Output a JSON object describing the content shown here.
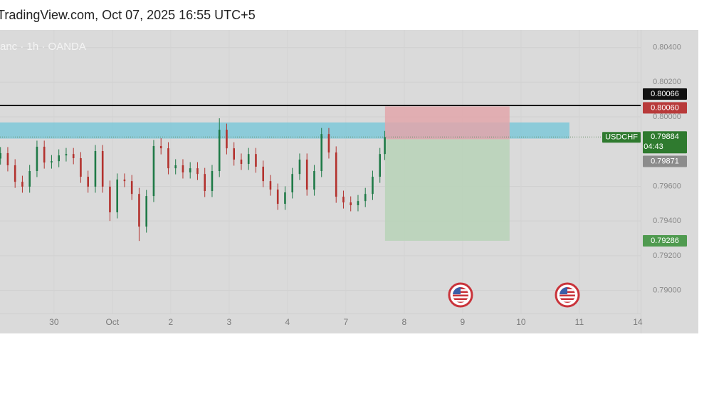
{
  "chart_data": {
    "type": "candlestick",
    "header": "TradingView.com, Oct 07, 2025 16:55 UTC+5",
    "title": "anc · 1h · OANDA",
    "xlim": [
      -22.2,
      241.2
    ],
    "ylim": [
      0.78867,
      0.80501
    ],
    "yticks": [
      {
        "value": 0.804,
        "label": "0.80400"
      },
      {
        "value": 0.802,
        "label": "0.80200"
      },
      {
        "value": 0.8,
        "label": "0.80000"
      },
      {
        "value": 0.796,
        "label": "0.79600"
      },
      {
        "value": 0.794,
        "label": "0.79400"
      },
      {
        "value": 0.792,
        "label": "0.79200"
      },
      {
        "value": 0.79,
        "label": "0.79000"
      }
    ],
    "xticks": [
      {
        "value": 0,
        "label": "30"
      },
      {
        "value": 24,
        "label": "Oct"
      },
      {
        "value": 48,
        "label": "2"
      },
      {
        "value": 72,
        "label": "3"
      },
      {
        "value": 96,
        "label": "4"
      },
      {
        "value": 120,
        "label": "7"
      },
      {
        "value": 144,
        "label": "8"
      },
      {
        "value": 168,
        "label": "9"
      },
      {
        "value": 192,
        "label": "10"
      },
      {
        "value": 216,
        "label": "11"
      },
      {
        "value": 240,
        "label": "14"
      }
    ],
    "up_color": "#1f7a47",
    "down_color": "#b3322e",
    "candles": {
      "x": [
        -22,
        -19,
        -16,
        -13,
        -10,
        -7,
        -4,
        -1,
        2,
        5,
        8,
        11,
        14,
        17,
        20,
        23,
        26,
        29,
        32,
        35,
        38,
        41,
        44,
        47,
        50,
        53,
        56,
        59,
        62,
        65,
        68,
        71,
        74,
        77,
        80,
        83,
        86,
        89,
        92,
        95,
        98,
        101,
        104,
        107,
        110,
        113,
        116,
        119,
        122,
        125,
        128,
        131,
        134,
        136
      ],
      "open": [
        0.7976,
        0.79791,
        0.79721,
        0.79626,
        0.79598,
        0.79688,
        0.79828,
        0.79737,
        0.79745,
        0.79778,
        0.79786,
        0.79762,
        0.79655,
        0.79598,
        0.79803,
        0.79598,
        0.7945,
        0.79639,
        0.7963,
        0.79556,
        0.79368,
        0.79544,
        0.79832,
        0.79819,
        0.79704,
        0.79721,
        0.7968,
        0.79704,
        0.79671,
        0.79573,
        0.79688,
        0.79926,
        0.79819,
        0.79754,
        0.79729,
        0.79786,
        0.79713,
        0.7963,
        0.79581,
        0.79499,
        0.79565,
        0.79671,
        0.79754,
        0.79581,
        0.79688,
        0.79901,
        0.79795,
        0.7954,
        0.79507,
        0.79491,
        0.79515,
        0.79556,
        0.79655,
        0.79786
      ],
      "high": [
        0.79826,
        0.79826,
        0.79756,
        0.79661,
        0.79723,
        0.79863,
        0.79863,
        0.7978,
        0.79813,
        0.79821,
        0.79821,
        0.79797,
        0.7969,
        0.79838,
        0.79838,
        0.79633,
        0.79674,
        0.79674,
        0.79665,
        0.79591,
        0.79579,
        0.79867,
        0.79877,
        0.79854,
        0.79756,
        0.79756,
        0.79739,
        0.79739,
        0.79706,
        0.79723,
        0.79992,
        0.79961,
        0.79854,
        0.79789,
        0.79821,
        0.79821,
        0.79748,
        0.79665,
        0.79616,
        0.796,
        0.79706,
        0.79789,
        0.79789,
        0.79723,
        0.79936,
        0.79936,
        0.7983,
        0.79575,
        0.79542,
        0.7955,
        0.79591,
        0.7969,
        0.79821,
        0.79919
      ],
      "low": [
        0.79725,
        0.79686,
        0.79591,
        0.79563,
        0.79563,
        0.79653,
        0.79702,
        0.79702,
        0.7971,
        0.79743,
        0.79727,
        0.7962,
        0.79563,
        0.79563,
        0.79563,
        0.794,
        0.79415,
        0.79595,
        0.79521,
        0.79285,
        0.79333,
        0.79509,
        0.79784,
        0.79669,
        0.79669,
        0.79645,
        0.79645,
        0.79636,
        0.79538,
        0.79538,
        0.79653,
        0.79784,
        0.79719,
        0.79694,
        0.79694,
        0.79678,
        0.79595,
        0.79546,
        0.79464,
        0.79464,
        0.7953,
        0.79636,
        0.79546,
        0.79546,
        0.79653,
        0.7976,
        0.79505,
        0.79472,
        0.79456,
        0.79456,
        0.7948,
        0.79521,
        0.7962,
        0.79751
      ],
      "close": [
        0.79791,
        0.79721,
        0.79626,
        0.79598,
        0.79688,
        0.79828,
        0.79737,
        0.79745,
        0.79778,
        0.79786,
        0.79762,
        0.79655,
        0.79598,
        0.79803,
        0.79598,
        0.7945,
        0.79639,
        0.7963,
        0.79556,
        0.79368,
        0.79544,
        0.79832,
        0.79819,
        0.79704,
        0.79721,
        0.7968,
        0.79704,
        0.79671,
        0.79573,
        0.79688,
        0.79926,
        0.79819,
        0.79754,
        0.79729,
        0.79786,
        0.79713,
        0.7963,
        0.79581,
        0.79499,
        0.79565,
        0.79671,
        0.79754,
        0.79581,
        0.79688,
        0.79901,
        0.79795,
        0.7954,
        0.79507,
        0.79491,
        0.79515,
        0.79556,
        0.79655,
        0.79786,
        0.79884
      ]
    },
    "zone": {
      "from": 0.79875,
      "to": 0.79968,
      "x_end": 211.9,
      "color": "#7ec8d8"
    },
    "levels": [
      {
        "value": 0.80066,
        "label": "0.80066",
        "color": "#111111",
        "draw_line": true
      },
      {
        "value": 0.8006,
        "label": "0.80060",
        "color": "#b83a3a"
      },
      {
        "value": 0.79871,
        "label": "0.79871",
        "color": "#8c8c8c"
      },
      {
        "value": 0.79286,
        "label": "0.79286",
        "color": "#4f9a4f"
      }
    ],
    "position": {
      "x_start": 136.1,
      "x_end": 187.3,
      "stop_color": "#e2a6aa",
      "target_color": "#b9d3b9"
    },
    "current": {
      "symbol": "USDCHF",
      "value": 0.79884,
      "label": "0.79884",
      "countdown": "04:43",
      "color": "#2f7a2f"
    }
  }
}
